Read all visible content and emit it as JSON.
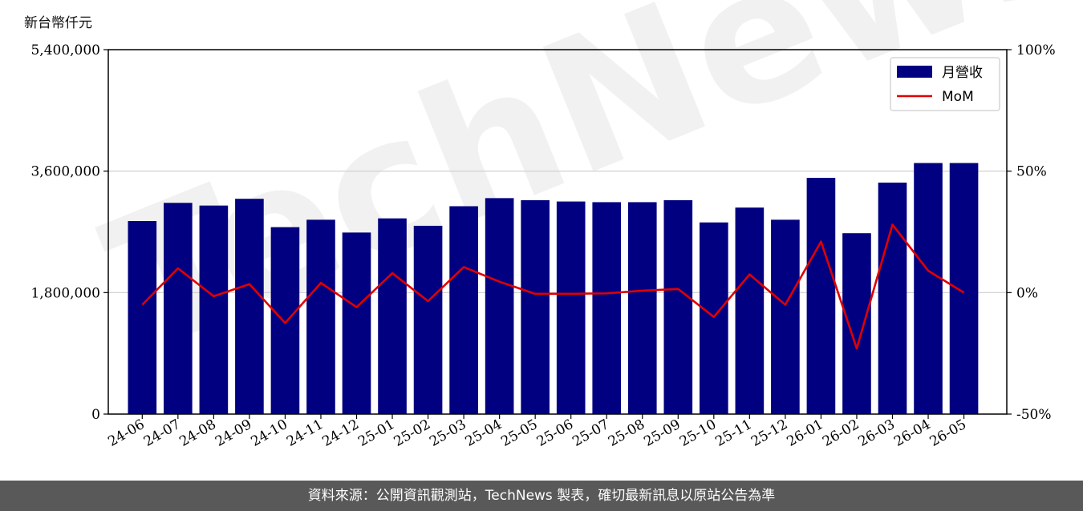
{
  "unit_label": "新台幣仟元",
  "footer_text": "資料來源：公開資訊觀測站，TechNews 製表，確切最新訊息以原站公告為準",
  "watermark_text": "TechNews",
  "colors": {
    "bar": "#000080",
    "line": "#e00000",
    "grid": "#cccccc",
    "footer_bg": "#595959"
  },
  "chart_data": {
    "type": "bar",
    "categories": [
      "24-06",
      "24-07",
      "24-08",
      "24-09",
      "24-10",
      "24-11",
      "24-12",
      "25-01",
      "25-02",
      "25-03",
      "25-04",
      "25-05",
      "25-06",
      "25-07",
      "25-08",
      "25-09",
      "25-10",
      "25-11",
      "25-12",
      "26-01",
      "26-02",
      "26-03",
      "26-04",
      "26-05"
    ],
    "series": [
      {
        "name": "月營收",
        "type": "bar",
        "axis": "left",
        "values": [
          2860000,
          3130000,
          3090000,
          3190000,
          2770000,
          2880000,
          2690000,
          2900000,
          2790000,
          3080000,
          3200000,
          3170000,
          3150000,
          3140000,
          3140000,
          3170000,
          2840000,
          3060000,
          2880000,
          3500000,
          2680000,
          3430000,
          3720000,
          3720000
        ]
      },
      {
        "name": "MoM",
        "type": "line",
        "axis": "right",
        "values": [
          -5,
          10,
          -1.5,
          3.5,
          -12.5,
          4,
          -6,
          8,
          -3.5,
          10.5,
          4.5,
          -0.5,
          -0.5,
          -0.3,
          0.8,
          1.5,
          -10,
          7.5,
          -5,
          21,
          -23,
          28,
          9,
          0
        ]
      }
    ],
    "y_left": {
      "ylim": [
        0,
        5400000
      ],
      "ticks": [
        "0",
        "1,800,000",
        "3,600,000",
        "5,400,000"
      ],
      "tick_values": [
        0,
        1800000,
        3600000,
        5400000
      ]
    },
    "y_right": {
      "ylim": [
        -50,
        100
      ],
      "ticks": [
        "-50%",
        "0%",
        "50%",
        "100%"
      ],
      "tick_values": [
        -50,
        0,
        50,
        100
      ]
    },
    "grid": "horizontal",
    "legend_placement": "top-right",
    "legend": [
      "月營收",
      "MoM"
    ]
  }
}
